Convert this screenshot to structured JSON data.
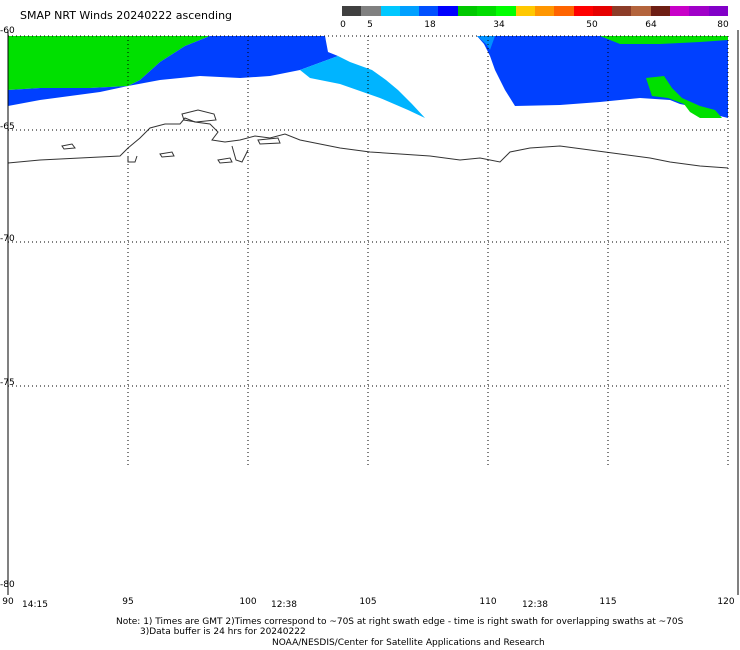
{
  "title": "SMAP NRT Winds 20240222 ascending",
  "colorbar": {
    "ticks": [
      "0",
      "5",
      "18",
      "34",
      "50",
      "64",
      "80"
    ],
    "segments": [
      "#404040",
      "#808080",
      "#00c8ff",
      "#00a0ff",
      "#0050ff",
      "#0000ff",
      "#00c800",
      "#00dc00",
      "#00ff00",
      "#ffc800",
      "#ff9600",
      "#ff6400",
      "#ff0000",
      "#e60000",
      "#8c3c28",
      "#b4643c",
      "#6e1e14",
      "#c800c8",
      "#a000c8",
      "#8200c8"
    ]
  },
  "latitude_labels": [
    "-60",
    "-65",
    "-70",
    "-75",
    "-80"
  ],
  "longitude_labels": [
    "90",
    "95",
    "100",
    "105",
    "110",
    "115",
    "120"
  ],
  "swath_times": [
    "14:15",
    "12:38",
    "12:38"
  ],
  "notes": {
    "line1": "Note: 1) Times are GMT 2)Times correspond to ~70S at right swath edge - time is right swath for overlapping swaths at ~70S",
    "line2": "3)Data buffer is 24 hrs for 20240222",
    "line3": "NOAA/NESDIS/Center for Satellite Applications and Research"
  },
  "colors": {
    "wind_green": "#00e000",
    "wind_blue": "#0040ff",
    "wind_light_blue": "#0090ff",
    "wind_cyan": "#00b4ff",
    "coastline": "#333333",
    "grid": "#000000"
  }
}
